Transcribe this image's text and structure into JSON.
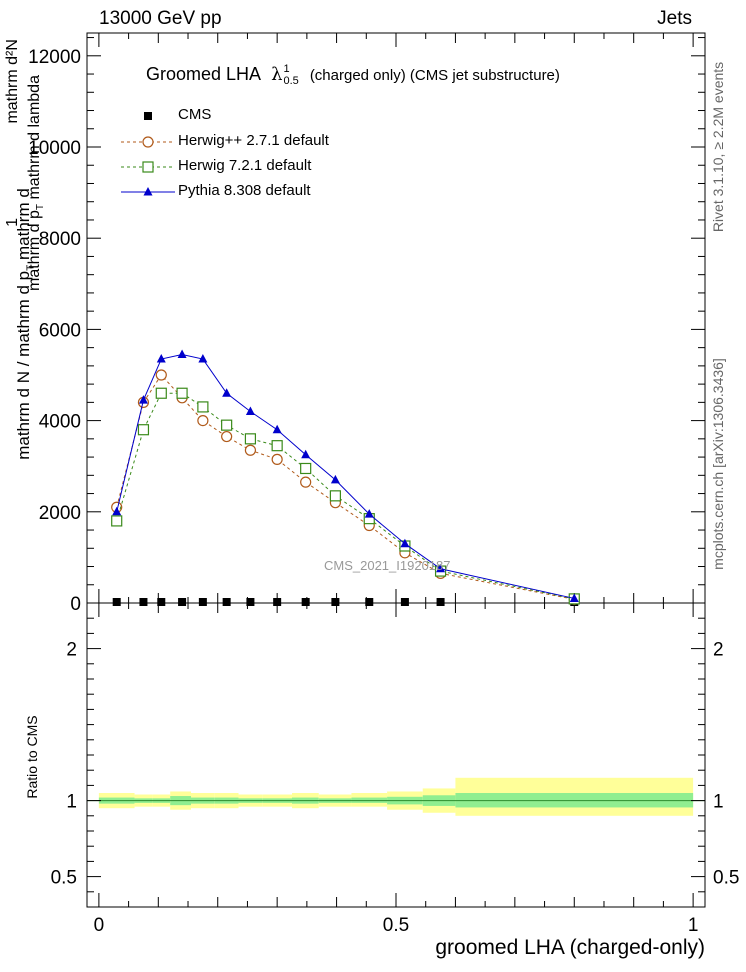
{
  "header": {
    "left": "13000 GeV pp",
    "right": "Jets"
  },
  "side_text": {
    "rivet": "Rivet 3.1.10, ≥ 2.2M events",
    "mcplots": "mcplots.cern.ch [arXiv:1306.3436]"
  },
  "watermark": "CMS_2021_I1920187",
  "colors": {
    "cms": "#000000",
    "herwigpp": "#b05a1a",
    "herwig7": "#3a8a1a",
    "pythia": "#0000cc",
    "band_outer": "#ffff99",
    "band_inner": "#90ee90"
  },
  "chart_data": [
    {
      "type": "line",
      "title": "Groomed LHA",
      "title_symbol": "λ",
      "title_sup": "1",
      "title_sub": "0.5",
      "title_rest": "(charged only) (CMS jet substructure)",
      "ylabel_parts": {
        "lead": "1",
        "numerator": "mathrm d²N",
        "denominator": "mathrm d p",
        "denominator_sub": "T",
        "denominator_rest": "mathrm d lambda",
        "over": "mathrm d N / mathrm d p",
        "over_sub": "T",
        "over_rest": "mathrm d"
      },
      "ylim": [
        0,
        12500
      ],
      "xlim": [
        -0.02,
        1.02
      ],
      "yticks": [
        0,
        2000,
        4000,
        6000,
        8000,
        10000,
        12000
      ],
      "ytick_labels": [
        "0",
        "2000",
        "4000",
        "6000",
        "8000",
        "10000",
        "12000"
      ],
      "x": [
        0.03,
        0.075,
        0.105,
        0.14,
        0.175,
        0.215,
        0.255,
        0.3,
        0.348,
        0.398,
        0.455,
        0.515,
        0.575,
        0.8
      ],
      "legend_position": "top-left",
      "series": [
        {
          "name": "CMS",
          "marker": "square-filled",
          "values": [
            0,
            0,
            0,
            0,
            0,
            0,
            0,
            0,
            0,
            0,
            0,
            0,
            0,
            0
          ]
        },
        {
          "name": "Herwig++ 2.7.1 default",
          "marker": "circle-open",
          "values": [
            2100,
            4400,
            5000,
            4500,
            4000,
            3650,
            3350,
            3150,
            2650,
            2200,
            1700,
            1100,
            650,
            80
          ]
        },
        {
          "name": "Herwig 7.2.1 default",
          "marker": "square-open",
          "values": [
            1800,
            3800,
            4600,
            4600,
            4300,
            3900,
            3600,
            3450,
            2950,
            2350,
            1850,
            1250,
            700,
            90
          ]
        },
        {
          "name": "Pythia 8.308 default",
          "marker": "triangle-filled",
          "values": [
            2000,
            4450,
            5350,
            5450,
            5350,
            4600,
            4200,
            3800,
            3250,
            2700,
            1950,
            1300,
            750,
            100
          ]
        }
      ]
    },
    {
      "type": "area",
      "ylabel": "Ratio to CMS",
      "xlabel": "groomed LHA (charged-only)",
      "xlim": [
        -0.02,
        1.02
      ],
      "ylim": [
        0.3,
        2.3
      ],
      "xticks": [
        0,
        0.5,
        1
      ],
      "xtick_labels": [
        "0",
        "0.5",
        "1"
      ],
      "yticks": [
        0.5,
        1,
        2
      ],
      "ytick_labels": [
        "0.5",
        "1",
        "2"
      ],
      "bin_edges": [
        0,
        0.06,
        0.09,
        0.12,
        0.155,
        0.195,
        0.235,
        0.275,
        0.325,
        0.37,
        0.425,
        0.485,
        0.545,
        0.6,
        1.0
      ],
      "outer_band": [
        [
          0.95,
          1.05
        ],
        [
          0.96,
          1.04
        ],
        [
          0.96,
          1.04
        ],
        [
          0.94,
          1.06
        ],
        [
          0.95,
          1.05
        ],
        [
          0.95,
          1.05
        ],
        [
          0.96,
          1.04
        ],
        [
          0.96,
          1.04
        ],
        [
          0.95,
          1.05
        ],
        [
          0.96,
          1.04
        ],
        [
          0.96,
          1.05
        ],
        [
          0.94,
          1.06
        ],
        [
          0.92,
          1.08
        ],
        [
          0.9,
          1.15
        ]
      ],
      "inner_band": [
        [
          0.98,
          1.02
        ],
        [
          0.985,
          1.015
        ],
        [
          0.985,
          1.015
        ],
        [
          0.97,
          1.03
        ],
        [
          0.98,
          1.02
        ],
        [
          0.98,
          1.02
        ],
        [
          0.985,
          1.015
        ],
        [
          0.985,
          1.015
        ],
        [
          0.98,
          1.02
        ],
        [
          0.985,
          1.015
        ],
        [
          0.985,
          1.02
        ],
        [
          0.975,
          1.025
        ],
        [
          0.965,
          1.035
        ],
        [
          0.955,
          1.05
        ]
      ]
    }
  ]
}
